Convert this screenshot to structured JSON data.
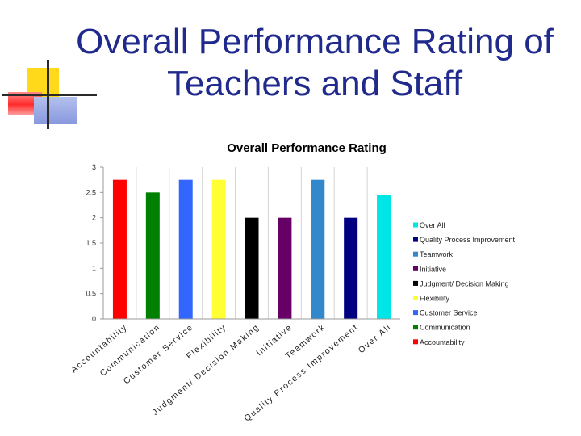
{
  "slide": {
    "title": "Overall Performance Rating of\nTeachers and Staff"
  },
  "chart_data": {
    "type": "bar",
    "title": "Overall Performance Rating",
    "xlabel": "",
    "ylabel": "",
    "ylim": [
      0,
      3
    ],
    "yticks": [
      "0",
      "0.5",
      "1",
      "1.5",
      "2",
      "2.5",
      "3"
    ],
    "grid": "vertical category dividers",
    "legend_position": "right",
    "categories": [
      "Accountability",
      "Communication",
      "Customer Service",
      "Flexibility",
      "Judgment/ Decision Making",
      "Initiative",
      "Teamwork",
      "Quality Process Improvement",
      "Over All"
    ],
    "values": [
      2.75,
      2.5,
      2.75,
      2.75,
      2.0,
      2.0,
      2.75,
      2.0,
      2.45
    ],
    "colors": [
      "#ff0000",
      "#008000",
      "#3366ff",
      "#ffff33",
      "#000000",
      "#660066",
      "#3388cc",
      "#000080",
      "#00e6e6"
    ],
    "legend": [
      {
        "label": "Over All",
        "color": "#00e6e6"
      },
      {
        "label": "Quality Process Improvement",
        "color": "#000080"
      },
      {
        "label": "Teamwork",
        "color": "#3388cc"
      },
      {
        "label": "Initiative",
        "color": "#660066"
      },
      {
        "label": "Judgment/ Decision Making",
        "color": "#000000"
      },
      {
        "label": "Flexibility",
        "color": "#ffff33"
      },
      {
        "label": "Customer Service",
        "color": "#3366ff"
      },
      {
        "label": "Communication",
        "color": "#008000"
      },
      {
        "label": "Accountability",
        "color": "#ff0000"
      }
    ]
  }
}
